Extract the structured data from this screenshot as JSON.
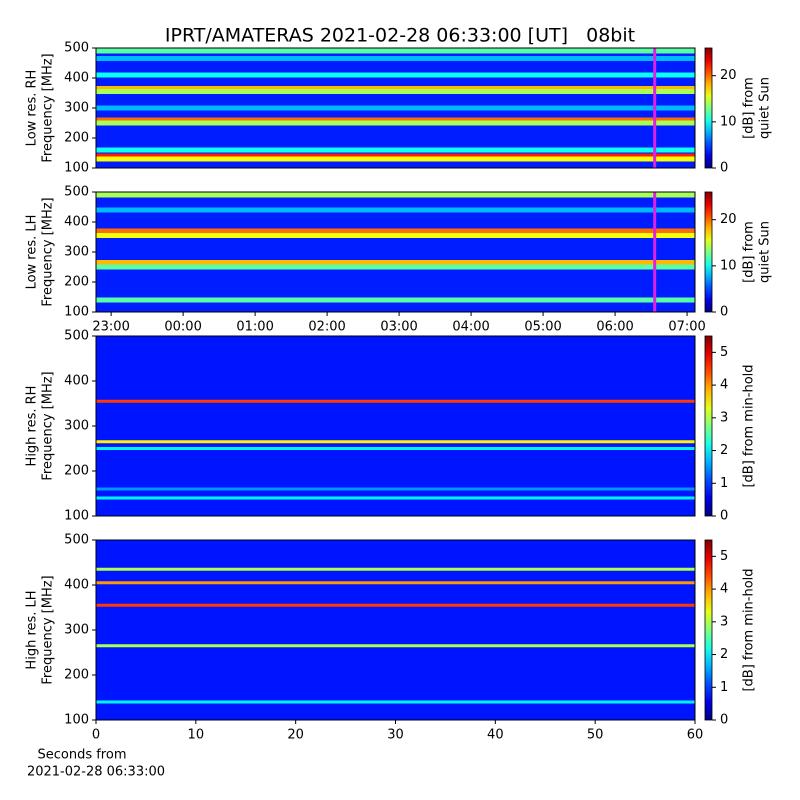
{
  "title": "IPRT/AMATERAS 2021-02-28 06:33:00 [UT]   08bit",
  "x_label": [
    "Seconds from",
    "2021-02-28 06:33:00"
  ],
  "chart_data": [
    {
      "type": "heatmap",
      "colormap": "jet",
      "ylabel": [
        "Low res. RH",
        "Frequency [MHz]"
      ],
      "xlim": [
        -1.21,
        7.11
      ],
      "ylim": [
        100,
        500
      ],
      "yticks": [
        100,
        200,
        300,
        400,
        500
      ],
      "background": 4,
      "band_freq": [
        490,
        465,
        410,
        365,
        355,
        300,
        260,
        250,
        160,
        140,
        130
      ],
      "band_values": [
        12,
        8,
        10,
        18,
        14,
        8,
        20,
        14,
        10,
        22,
        16
      ],
      "marker_time": 6.55,
      "marker_color": "#e020e0",
      "clim": [
        0,
        26
      ],
      "cticks": [
        0,
        10,
        20
      ],
      "clabel": [
        "[dB] from",
        "quiet Sun"
      ]
    },
    {
      "type": "heatmap",
      "colormap": "jet",
      "ylabel": [
        "Low res. LH",
        "Frequency [MHz]"
      ],
      "xlim": [
        -1.21,
        7.11
      ],
      "ylim": [
        100,
        500
      ],
      "yticks": [
        100,
        200,
        300,
        400,
        500
      ],
      "xticks": [
        {
          "value": -1,
          "label": "23:00"
        },
        {
          "value": 0,
          "label": "00:00"
        },
        {
          "value": 1,
          "label": "01:00"
        },
        {
          "value": 2,
          "label": "02:00"
        },
        {
          "value": 3,
          "label": "03:00"
        },
        {
          "value": 4,
          "label": "04:00"
        },
        {
          "value": 5,
          "label": "05:00"
        },
        {
          "value": 6,
          "label": "06:00"
        },
        {
          "value": 7,
          "label": "07:00"
        }
      ],
      "background": 4,
      "band_freq": [
        490,
        440,
        370,
        355,
        265,
        250,
        140
      ],
      "band_values": [
        14,
        8,
        20,
        16,
        18,
        12,
        12
      ],
      "marker_time": 6.55,
      "marker_color": "#e020e0",
      "clim": [
        0,
        26
      ],
      "cticks": [
        0,
        10,
        20
      ],
      "clabel": [
        "[dB] from",
        "quiet Sun"
      ]
    },
    {
      "type": "heatmap",
      "colormap": "jet",
      "ylabel": [
        "High res. RH",
        "Frequency [MHz]"
      ],
      "xlim": [
        0,
        60
      ],
      "ylim": [
        100,
        500
      ],
      "yticks": [
        100,
        200,
        300,
        400,
        500
      ],
      "background": 0.8,
      "band_freq": [
        355,
        265,
        250,
        160,
        140
      ],
      "band_values": [
        4.5,
        3.5,
        2,
        1.5,
        2
      ],
      "clim": [
        0,
        5.5
      ],
      "cticks": [
        0,
        1,
        2,
        3,
        4,
        5
      ],
      "clabel": [
        "[dB] from min-hold"
      ]
    },
    {
      "type": "heatmap",
      "colormap": "jet",
      "ylabel": [
        "High res. LH",
        "Frequency [MHz]"
      ],
      "xlim": [
        0,
        60
      ],
      "ylim": [
        100,
        500
      ],
      "yticks": [
        100,
        200,
        300,
        400,
        500
      ],
      "xticks": [
        0,
        10,
        20,
        30,
        40,
        50,
        60
      ],
      "background": 0.8,
      "band_freq": [
        435,
        405,
        355,
        265,
        140
      ],
      "band_values": [
        3,
        4,
        4.5,
        3,
        2
      ],
      "clim": [
        0,
        5.5
      ],
      "cticks": [
        0,
        1,
        2,
        3,
        4,
        5
      ],
      "clabel": [
        "[dB] from min-hold"
      ]
    }
  ]
}
